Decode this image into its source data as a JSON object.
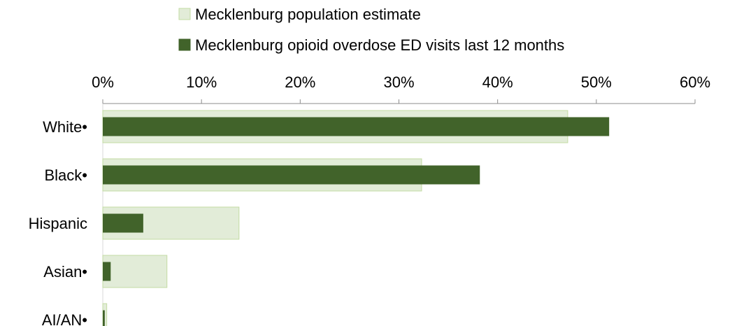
{
  "chart_data": {
    "type": "bar",
    "orientation": "horizontal",
    "categories": [
      "White•",
      "Black•",
      "Hispanic",
      "Asian•",
      "AI/AN•"
    ],
    "series": [
      {
        "name": "Mecklenburg population estimate",
        "values": [
          47.1,
          32.3,
          13.8,
          6.5,
          0.4
        ],
        "color": "#e2ecd8",
        "border_color": "#c3dba3"
      },
      {
        "name": "Mecklenburg opioid overdose ED visits last 12 months",
        "values": [
          51.3,
          38.2,
          4.1,
          0.8,
          0.2
        ],
        "color": "#41632a"
      }
    ],
    "tick_labels": [
      "0%",
      "10%",
      "20%",
      "30%",
      "40%",
      "50%",
      "60%"
    ],
    "xlim": [
      0,
      60
    ],
    "axis_position": "top",
    "grid": false,
    "legend_position": "top"
  }
}
